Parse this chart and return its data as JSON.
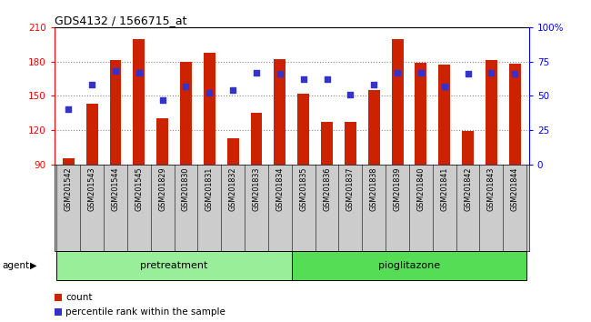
{
  "title": "GDS4132 / 1566715_at",
  "samples": [
    "GSM201542",
    "GSM201543",
    "GSM201544",
    "GSM201545",
    "GSM201829",
    "GSM201830",
    "GSM201831",
    "GSM201832",
    "GSM201833",
    "GSM201834",
    "GSM201835",
    "GSM201836",
    "GSM201837",
    "GSM201838",
    "GSM201839",
    "GSM201840",
    "GSM201841",
    "GSM201842",
    "GSM201843",
    "GSM201844"
  ],
  "counts": [
    95,
    143,
    181,
    200,
    130,
    180,
    188,
    113,
    135,
    182,
    152,
    127,
    127,
    155,
    200,
    179,
    177,
    119,
    181,
    178
  ],
  "percentiles": [
    40,
    58,
    68,
    67,
    47,
    57,
    52,
    54,
    67,
    66,
    62,
    62,
    51,
    58,
    67,
    67,
    57,
    66,
    67,
    66
  ],
  "bar_color": "#cc2200",
  "dot_color": "#3333cc",
  "ylim_left": [
    90,
    210
  ],
  "ylim_right": [
    0,
    100
  ],
  "yticks_left": [
    90,
    120,
    150,
    180,
    210
  ],
  "yticks_right": [
    0,
    25,
    50,
    75,
    100
  ],
  "yticklabels_right": [
    "0",
    "25",
    "50",
    "75",
    "100%"
  ],
  "groups": [
    {
      "text": "pretreatment",
      "start": 0,
      "end": 9,
      "color": "#99ee99"
    },
    {
      "text": "pioglitazone",
      "start": 10,
      "end": 19,
      "color": "#55dd55"
    }
  ],
  "agent_label": "agent",
  "legend_count_label": "count",
  "legend_pct_label": "percentile rank within the sample",
  "bar_width": 0.5,
  "background_color": "#ffffff",
  "plot_bg_color": "#ffffff",
  "grid_color": "#888888",
  "tick_area_color": "#cccccc"
}
